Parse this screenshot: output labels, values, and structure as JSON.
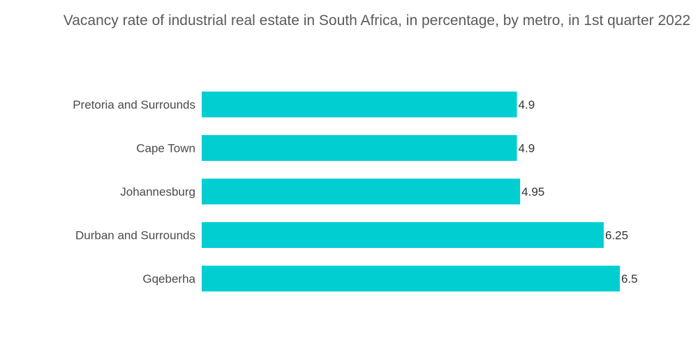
{
  "chart_data": {
    "type": "bar",
    "orientation": "horizontal",
    "title": "Vacancy rate of industrial real estate in South Africa, in percentage, by metro, in 1st quarter 2022",
    "categories": [
      "Pretoria and Surrounds",
      "Cape Town",
      "Johannesburg",
      "Durban and Surrounds",
      "Gqeberha"
    ],
    "values": [
      4.9,
      4.9,
      4.95,
      6.25,
      6.5
    ],
    "value_labels": [
      "4.9",
      "4.9",
      "4.95",
      "6.25",
      "6.5"
    ],
    "xlabel": "",
    "ylabel": "",
    "xlim": [
      0,
      6.5
    ],
    "grid": false,
    "legend": "none",
    "bar_color": "#00CED1"
  }
}
